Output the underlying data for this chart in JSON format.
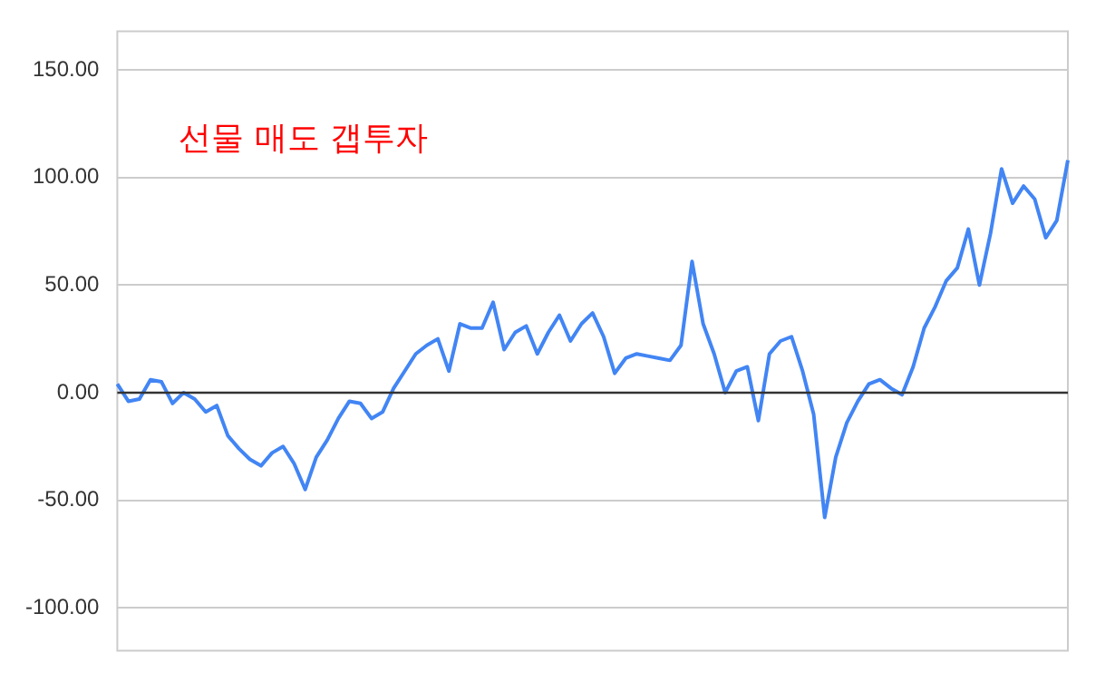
{
  "chart_data": {
    "type": "line",
    "annotations": [
      "선물 매도 갭투자"
    ],
    "categories": [
      null,
      null,
      null,
      null,
      null,
      null,
      null,
      null,
      null,
      null,
      null,
      null,
      null,
      null,
      null,
      null,
      null,
      null,
      null,
      null,
      null,
      null,
      null,
      null,
      null,
      null,
      null,
      null,
      null,
      null,
      null,
      null,
      null,
      null,
      null,
      null,
      null,
      null,
      null,
      null,
      null,
      null,
      null,
      null,
      null,
      null,
      null,
      null,
      null,
      null,
      null,
      null,
      null,
      null,
      null,
      null,
      null,
      null,
      null,
      null,
      null,
      null,
      null,
      null,
      null,
      null,
      null,
      null,
      null,
      null,
      null,
      null,
      null,
      null,
      null,
      null,
      null,
      null,
      null,
      null,
      null,
      null,
      null,
      null,
      null,
      null,
      null
    ],
    "series": [
      {
        "color": "#4285f4",
        "values": [
          4,
          -4,
          -3,
          6,
          5,
          -5,
          0,
          -3,
          -9,
          -6,
          -20,
          -26,
          -31,
          -34,
          -28,
          -25,
          -33,
          -45,
          -30,
          -22,
          -12,
          -4,
          -5,
          -12,
          -9,
          2,
          10,
          18,
          22,
          25,
          10,
          32,
          30,
          30,
          42,
          20,
          28,
          31,
          18,
          28,
          36,
          24,
          32,
          37,
          26,
          9,
          16,
          18,
          17,
          16,
          15,
          22,
          61,
          32,
          18,
          0,
          10,
          12,
          -13,
          18,
          24,
          26,
          10,
          -10,
          -58,
          -30,
          -14,
          -4,
          4,
          6,
          2,
          -1,
          12,
          30,
          40,
          52,
          58,
          76,
          50,
          74,
          104,
          88,
          96,
          90,
          72,
          80,
          108
        ]
      }
    ],
    "ylim": [
      -120,
      168
    ],
    "yticks": [
      {
        "value": -100,
        "label": "-100.00"
      },
      {
        "value": -50,
        "label": "-50.00"
      },
      {
        "value": 0,
        "label": "0.00"
      },
      {
        "value": 50,
        "label": "50.00"
      },
      {
        "value": 100,
        "label": "100.00"
      },
      {
        "value": 150,
        "label": "150.00"
      }
    ],
    "ref_lines": [
      {
        "axis": "y",
        "value": 0,
        "color": "#333333"
      }
    ],
    "grid": "y",
    "legend": false,
    "tick_labels": "y",
    "marker": "none",
    "line_style": "solid"
  }
}
